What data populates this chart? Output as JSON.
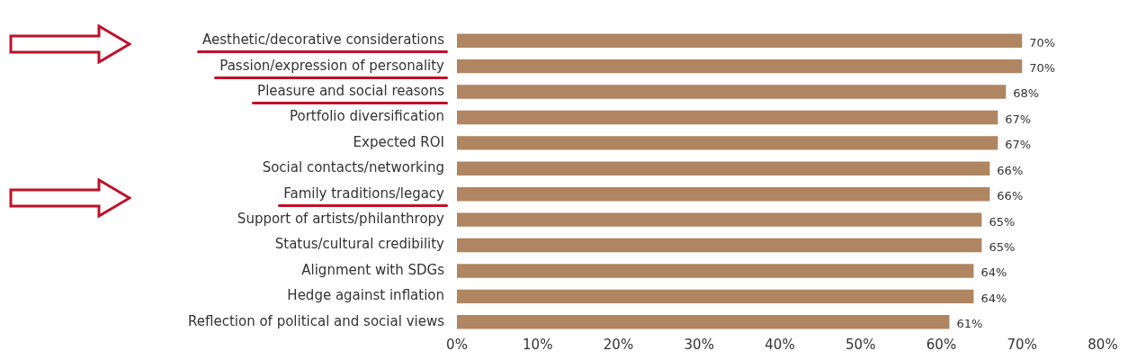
{
  "chart_data": {
    "type": "bar",
    "orientation": "horizontal",
    "categories": [
      "Aesthetic/decorative considerations",
      "Passion/expression of personality",
      "Pleasure and social reasons",
      "Portfolio diversification",
      "Expected ROI",
      "Social contacts/networking",
      "Family traditions/legacy",
      "Support of artists/philanthropy",
      "Status/cultural credibility",
      "Alignment with SDGs",
      "Hedge against inflation",
      "Reflection of political and social views"
    ],
    "values": [
      70,
      70,
      68,
      67,
      67,
      66,
      66,
      65,
      65,
      64,
      64,
      61
    ],
    "value_labels": [
      "70%",
      "70%",
      "68%",
      "67%",
      "67%",
      "66%",
      "66%",
      "65%",
      "65%",
      "64%",
      "64%",
      "61%"
    ],
    "color": "#b08561",
    "xlim": [
      0,
      80
    ],
    "xticks": [
      {
        "value": 0,
        "label": "0%"
      },
      {
        "value": 10,
        "label": "10%"
      },
      {
        "value": 20,
        "label": "20%"
      },
      {
        "value": 30,
        "label": "30%"
      },
      {
        "value": 40,
        "label": "40%"
      },
      {
        "value": 50,
        "label": "50%"
      },
      {
        "value": 60,
        "label": "60%"
      },
      {
        "value": 70,
        "label": "70%"
      },
      {
        "value": 80,
        "label": "80%"
      }
    ],
    "grid": false,
    "legend": false
  }
}
